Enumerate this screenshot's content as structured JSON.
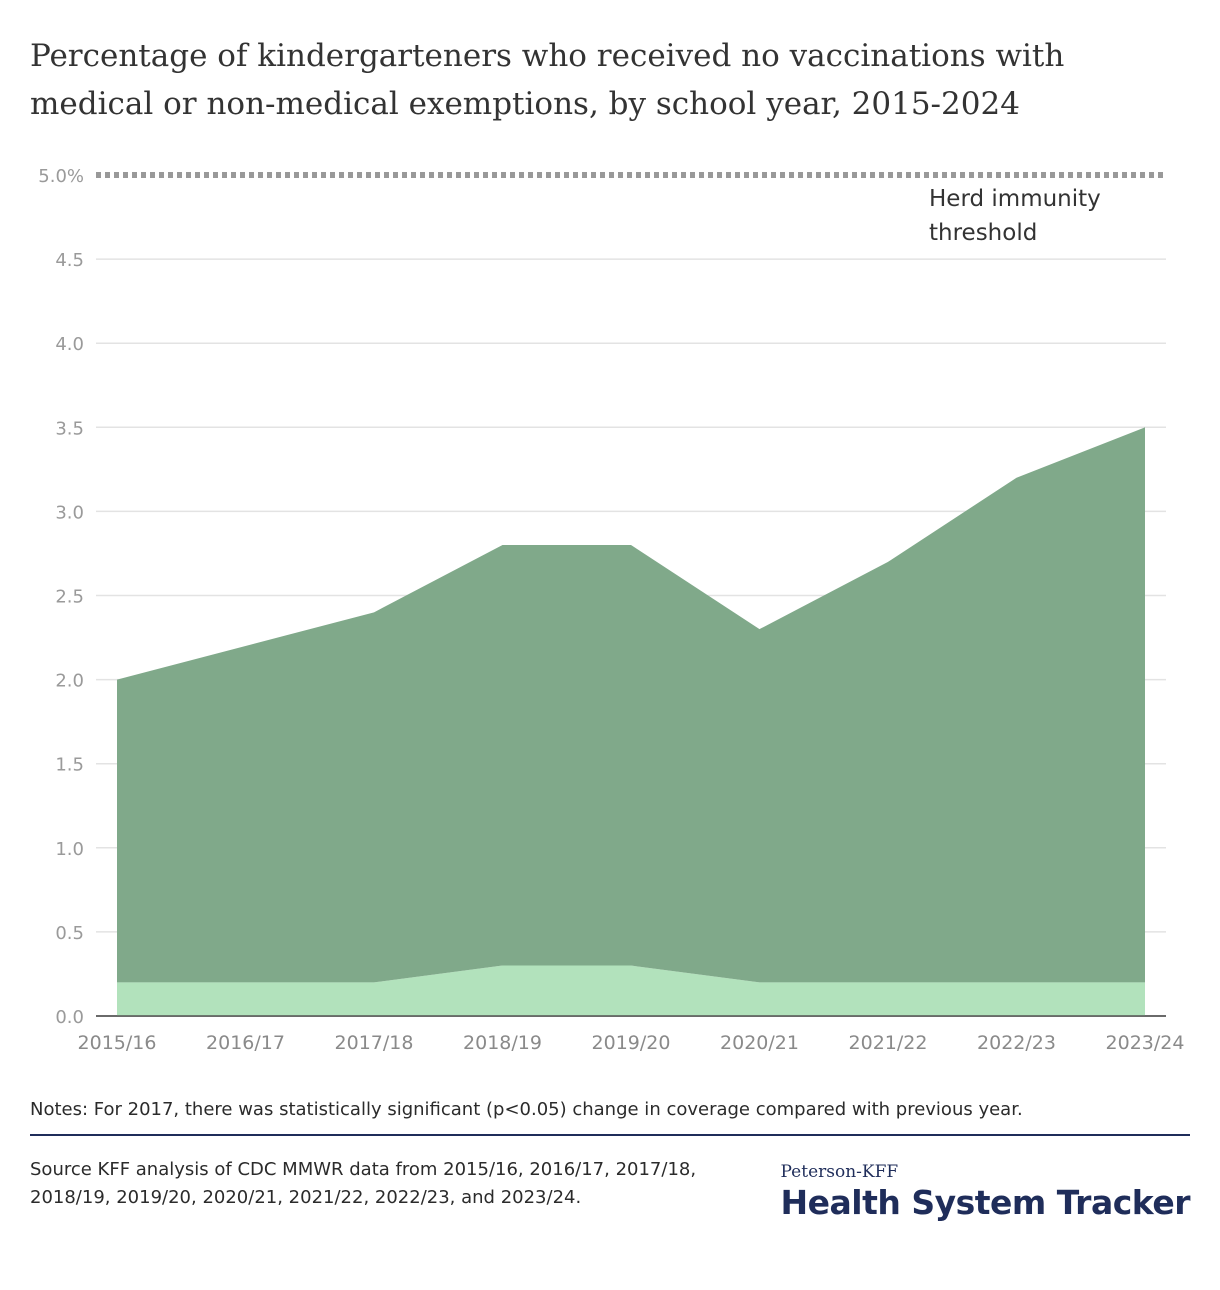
{
  "title": "Percentage of kindergarteners who received no vaccinations with medical or non-medical exemptions, by school year, 2015-2024",
  "chart_data": {
    "type": "area",
    "categories": [
      "2015/16",
      "2016/17",
      "2017/18",
      "2018/19",
      "2019/20",
      "2020/21",
      "2021/22",
      "2022/23",
      "2023/24"
    ],
    "series": [
      {
        "values": [
          0.2,
          0.2,
          0.2,
          0.3,
          0.3,
          0.2,
          0.2,
          0.2,
          0.2
        ],
        "color": "#b2e2bc"
      },
      {
        "values": [
          1.8,
          2.0,
          2.2,
          2.5,
          2.5,
          2.1,
          2.5,
          3.0,
          3.3
        ],
        "color": "#80a98a"
      }
    ],
    "ylim": [
      0,
      5.0
    ],
    "y_ticks": [
      {
        "value": 0,
        "label": "0.0"
      },
      {
        "value": 0.5,
        "label": "0.5"
      },
      {
        "value": 1.0,
        "label": "1.0"
      },
      {
        "value": 1.5,
        "label": "1.5"
      },
      {
        "value": 2.0,
        "label": "2.0"
      },
      {
        "value": 2.5,
        "label": "2.5"
      },
      {
        "value": 3.0,
        "label": "3.0"
      },
      {
        "value": 3.5,
        "label": "3.5"
      },
      {
        "value": 4.0,
        "label": "4.0"
      },
      {
        "value": 4.5,
        "label": "4.5"
      },
      {
        "value": 5.0,
        "label": "5.0%"
      }
    ],
    "reference_line": {
      "value": 5.0,
      "label_lines": [
        "Herd immunity",
        "threshold"
      ],
      "style": "dotted",
      "color": "#999999"
    },
    "grid": true,
    "xlabel": "",
    "ylabel": ""
  },
  "notes": "Notes: For 2017, there was statistically significant (p<0.05) change in coverage compared with previous year.",
  "source": "Source KFF analysis of CDC MMWR data from 2015/16, 2016/17, 2017/18, 2018/19, 2019/20, 2020/21, 2021/22, 2022/23, and 2023/24.",
  "brand": {
    "top": "Peterson-KFF",
    "main": "Health System Tracker",
    "color": "#1f2d5a"
  }
}
